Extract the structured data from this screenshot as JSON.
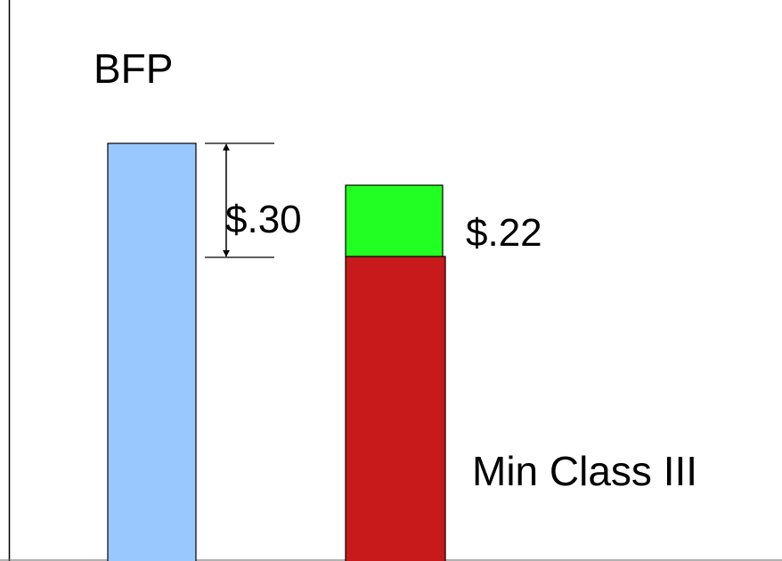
{
  "title": "BFP",
  "difference_label": "$.30",
  "segment_label": "$.22",
  "base_label": "Min Class III"
}
